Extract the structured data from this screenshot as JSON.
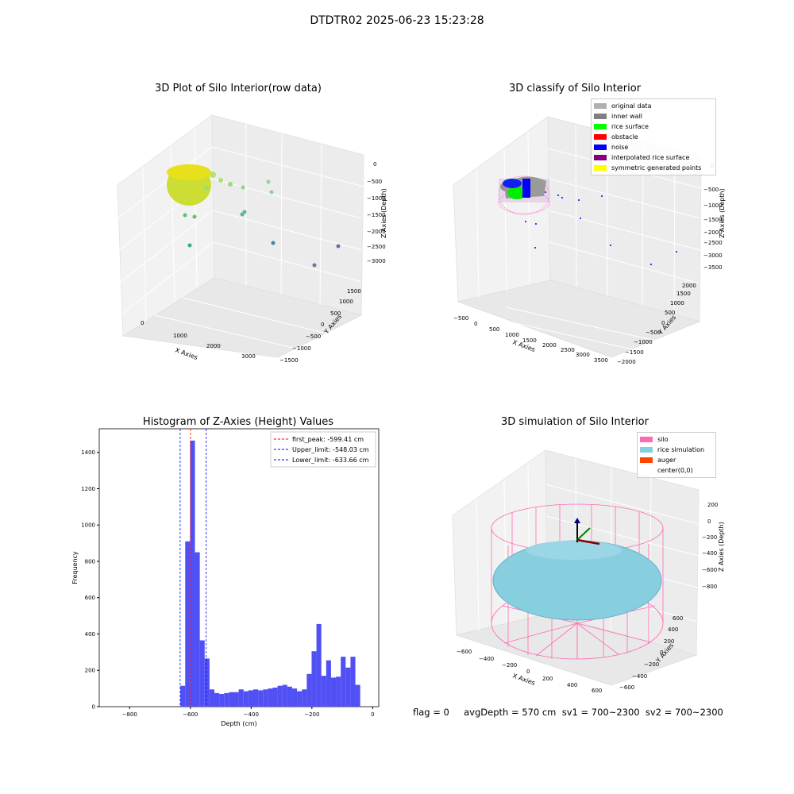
{
  "figure": {
    "title": "DTDTR02 2025-06-23 15:23:28",
    "status_line": "flag = 0     avgDepth = 570 cm  sv1 = 700~2300  sv2 = 700~2300"
  },
  "colors": {
    "histogram_bar": "#5050f5",
    "first_peak_line": "#ff0000",
    "limit_line": "#0000ff",
    "raw_points_main": "#c8dc1e",
    "silo_wire": "#ff69b4",
    "rice_sim": "#87cedf",
    "auger": "#ff4500",
    "grid_pane": "#f2f2f2"
  },
  "chart_data": [
    {
      "type": "scatter",
      "title": "3D Plot of Silo Interior(row data)",
      "xlabel": "X Axies",
      "ylabel": "Y Axies",
      "zlabel": "Z Axies (Depth)",
      "x_ticks": [
        "0",
        "1000",
        "2000",
        "3000"
      ],
      "y_ticks": [
        "−1500",
        "−1000",
        "−500",
        "0",
        "500",
        "1000",
        "1500"
      ],
      "z_ticks": [
        "0",
        "−500",
        "−1000",
        "−1500",
        "−2000",
        "−2500",
        "−3000"
      ],
      "description_points": "dense cylindrical cluster near x≈0, y≈0, z≈−500 to −1000 plus scattered outliers",
      "outliers": [
        {
          "x": 800,
          "y": 200,
          "z": -1200
        },
        {
          "x": 1300,
          "y": 500,
          "z": -1400
        },
        {
          "x": 1900,
          "y": 800,
          "z": -1500
        },
        {
          "x": 2400,
          "y": 900,
          "z": -1800
        },
        {
          "x": 1100,
          "y": -200,
          "z": -2500
        },
        {
          "x": 2200,
          "y": -600,
          "z": -2700
        },
        {
          "x": 3300,
          "y": -300,
          "z": -3000
        }
      ]
    },
    {
      "type": "scatter",
      "title": "3D classify of Silo Interior",
      "xlabel": "X Axies",
      "ylabel": "Y Axies",
      "zlabel": "Z Axies (Depth)",
      "x_ticks": [
        "−500",
        "0",
        "500",
        "1000",
        "1500",
        "2000",
        "2500",
        "3000",
        "3500"
      ],
      "y_ticks": [
        "−2000",
        "−1500",
        "−1000",
        "−500",
        "0",
        "500",
        "1000",
        "1500",
        "2000"
      ],
      "z_ticks": [
        "0",
        "−500",
        "−1000",
        "−1500",
        "−2000",
        "−2500",
        "−3000",
        "−3500"
      ],
      "legend": [
        {
          "label": "original data",
          "color": "#b0b0b0"
        },
        {
          "label": "inner wall",
          "color": "#808080"
        },
        {
          "label": "rice surface",
          "color": "#00ff00"
        },
        {
          "label": "obstacle",
          "color": "#ff0000"
        },
        {
          "label": "noise",
          "color": "#0000ff"
        },
        {
          "label": "interpolated rice surface",
          "color": "#800080"
        },
        {
          "label": "symmetric generated points",
          "color": "#ffff00"
        }
      ],
      "legend_position": "top-right"
    },
    {
      "type": "bar",
      "title": "Histogram of Z-Axies (Height) Values",
      "xlabel": "Depth (cm)",
      "ylabel": "Frequency",
      "xlim": [
        -900,
        20
      ],
      "ylim": [
        0,
        1530
      ],
      "x_ticks": [
        -800,
        -600,
        -400,
        -200,
        0
      ],
      "y_ticks": [
        0,
        200,
        400,
        600,
        800,
        1000,
        1200,
        1400
      ],
      "bin_width": 16,
      "bin_start": -633,
      "values": [
        115,
        910,
        1465,
        850,
        365,
        265,
        95,
        75,
        70,
        75,
        80,
        80,
        95,
        85,
        90,
        95,
        90,
        95,
        100,
        105,
        115,
        120,
        110,
        100,
        85,
        95,
        180,
        305,
        455,
        170,
        255,
        160,
        165,
        275,
        215,
        275,
        120
      ],
      "vlines": [
        {
          "label": "first_peak: -599.41 cm",
          "x": -599.41,
          "color": "#ff0000"
        },
        {
          "label": "Upper_limit: -548.03 cm",
          "x": -548.03,
          "color": "#0000ff"
        },
        {
          "label": "Lower_limit: -633.66 cm",
          "x": -633.66,
          "color": "#0000ff"
        }
      ],
      "legend_position": "top-right"
    },
    {
      "type": "scatter",
      "title": "3D simulation of Silo Interior",
      "xlabel": "X Axies",
      "ylabel": "Y Axies",
      "zlabel": "Z Axies (Depth)",
      "x_ticks": [
        "−600",
        "−400",
        "−200",
        "0",
        "200",
        "400",
        "600"
      ],
      "y_ticks": [
        "−600",
        "−400",
        "−200",
        "0",
        "200",
        "400",
        "600"
      ],
      "z_ticks": [
        "200",
        "0",
        "−200",
        "−400",
        "−600",
        "−800"
      ],
      "legend": [
        {
          "label": "silo",
          "color": "#ff69b4"
        },
        {
          "label": "rice simulation",
          "color": "#87cedf"
        },
        {
          "label": "auger",
          "color": "#ff4500"
        },
        {
          "label": "center(0,0)",
          "color": ""
        }
      ],
      "legend_position": "top-right"
    }
  ]
}
